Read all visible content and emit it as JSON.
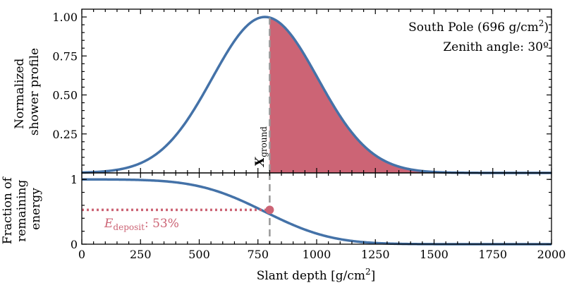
{
  "colors": {
    "curve": "#4472a8",
    "fill": "#cc6475",
    "ground_line": "#999999",
    "deposit": "#cc6475"
  },
  "chart_data": [
    {
      "type": "area",
      "title": "",
      "ylabel_lines": [
        "Normalized",
        "shower profile"
      ],
      "xlim": [
        0,
        2000
      ],
      "ylim": [
        0,
        1.05
      ],
      "yticks": [
        0.25,
        0.5,
        0.75,
        1.0
      ],
      "ytick_labels": [
        "0.25",
        "0.50",
        "0.75",
        "1.00"
      ],
      "peak_depth": 780,
      "profile_width": 225,
      "x_ground": 800,
      "shaded_region": "x >= X_ground",
      "ground_label_main": "X",
      "ground_label_sub": "ground",
      "annotation_line1": "South Pole (696 g/cm",
      "annotation_line1_sup": "2",
      "annotation_line1_end": ")",
      "annotation_line2": "Zenith angle: 30º"
    },
    {
      "type": "line",
      "ylabel_lines": [
        "Fraction of",
        "remaining",
        "energy"
      ],
      "xlabel": "Slant depth [g/cm",
      "xlabel_sup": "2",
      "xlabel_end": "]",
      "xlim": [
        0,
        2000
      ],
      "ylim": [
        0,
        1.1
      ],
      "xticks": [
        0,
        250,
        500,
        750,
        1000,
        1250,
        1500,
        1750,
        2000
      ],
      "xtick_labels": [
        "0",
        "250",
        "500",
        "750",
        "1000",
        "1250",
        "1500",
        "1750",
        "2000"
      ],
      "yticks": [
        0,
        1
      ],
      "ytick_labels": [
        "0",
        "1"
      ],
      "deposit_value": 0.53,
      "deposit_label_main": "E",
      "deposit_label_sub": "deposit",
      "deposit_label_value": ": 53%"
    }
  ]
}
